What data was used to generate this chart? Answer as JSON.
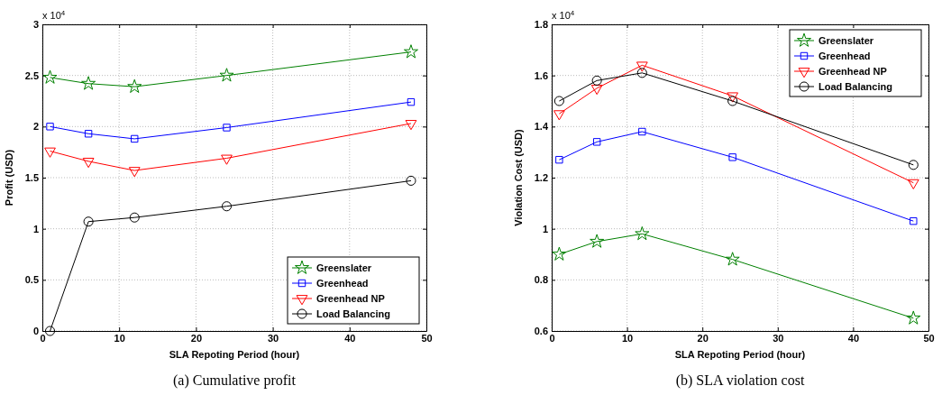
{
  "chart_data": [
    {
      "type": "line",
      "xlabel": "SLA Repoting Period (hour)",
      "ylabel": "Profit (USD)",
      "x": [
        1,
        6,
        12,
        24,
        48
      ],
      "series": [
        {
          "name": "Greenslater",
          "color": "#008000",
          "marker": "star",
          "values": [
            2.48,
            2.42,
            2.39,
            2.5,
            2.73
          ]
        },
        {
          "name": "Greenhead",
          "color": "#0000ff",
          "marker": "square",
          "values": [
            2,
            1.93,
            1.88,
            1.99,
            2.24
          ]
        },
        {
          "name": "Greenhead NP",
          "color": "#ff0000",
          "marker": "triangle",
          "values": [
            1.76,
            1.66,
            1.57,
            1.69,
            2.03
          ]
        },
        {
          "name": "Load Balancing",
          "color": "#000000",
          "marker": "circle",
          "values": [
            0,
            1.07,
            1.11,
            1.22,
            1.47
          ]
        }
      ],
      "xlim": [
        0,
        50
      ],
      "xticks": [
        0,
        10,
        20,
        30,
        40,
        50
      ],
      "ylim": [
        0,
        3
      ],
      "yticks": [
        0,
        0.5,
        1,
        1.5,
        2,
        2.5,
        3
      ],
      "grid": true,
      "legend": "bottom right",
      "line_style": "solid",
      "annotations": [
        "x 10$^{4}$",
        "(a)  Cumulative profit"
      ]
    },
    {
      "type": "line",
      "xlabel": "SLA Repoting Period (hour)",
      "ylabel": "Violation Cost (USD)",
      "x": [
        1,
        6,
        12,
        24,
        48
      ],
      "series": [
        {
          "name": "Greenslater",
          "color": "#008000",
          "marker": "star",
          "values": [
            0.9,
            0.95,
            0.98,
            0.88,
            0.65
          ]
        },
        {
          "name": "Greenhead",
          "color": "#0000ff",
          "marker": "square",
          "values": [
            1.27,
            1.34,
            1.38,
            1.28,
            1.03
          ]
        },
        {
          "name": "Greenhead NP",
          "color": "#ff0000",
          "marker": "triangle",
          "values": [
            1.45,
            1.55,
            1.64,
            1.52,
            1.18
          ]
        },
        {
          "name": "Load Balancing",
          "color": "#000000",
          "marker": "circle",
          "values": [
            1.5,
            1.58,
            1.61,
            1.5,
            1.25
          ]
        }
      ],
      "xlim": [
        0,
        50
      ],
      "xticks": [
        0,
        10,
        20,
        30,
        40,
        50
      ],
      "ylim": [
        0.6,
        1.8
      ],
      "yticks": [
        0.6,
        0.8,
        1,
        1.2,
        1.4,
        1.6,
        1.8
      ],
      "grid": true,
      "legend": "top right",
      "line_style": "solid",
      "annotations": [
        "x 10$^{4}$",
        "(b) SLA violation cost"
      ]
    }
  ]
}
